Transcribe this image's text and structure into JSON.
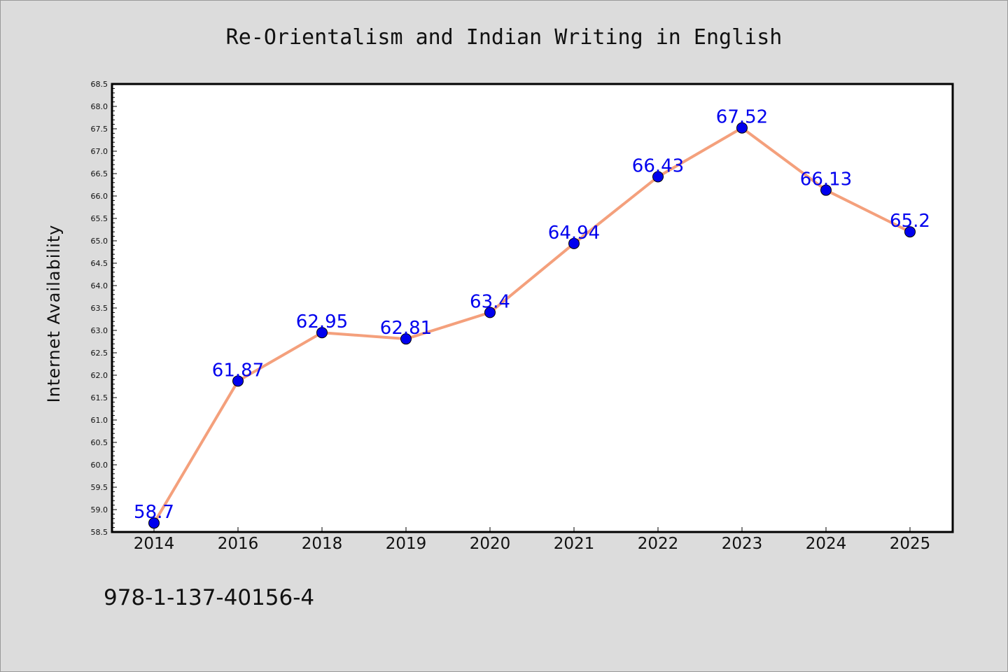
{
  "chart_data": {
    "type": "line",
    "title": "Re-Orientalism and Indian Writing in English",
    "xlabel": "",
    "ylabel": "Internet Availability",
    "categories": [
      "2014",
      "2016",
      "2018",
      "2019",
      "2020",
      "2021",
      "2022",
      "2023",
      "2024",
      "2025"
    ],
    "series": [
      {
        "values": [
          58.7,
          61.87,
          62.95,
          62.81,
          63.4,
          64.94,
          66.43,
          67.52,
          66.13,
          65.2
        ],
        "data_labels": [
          "58.7",
          "61.87",
          "62.95",
          "62.81",
          "63.4",
          "64.94",
          "66.43",
          "67.52",
          "66.13",
          "65.2"
        ]
      }
    ],
    "ylim": [
      58.5,
      68.5
    ],
    "yticks": [
      "58.5",
      "59.0",
      "59.5",
      "60.0",
      "60.5",
      "61.0",
      "61.5",
      "62.0",
      "62.5",
      "63.0",
      "63.5",
      "64.0",
      "64.5",
      "65.0",
      "65.5",
      "66.0",
      "66.5",
      "67.0",
      "67.5",
      "68.0",
      "68.5"
    ],
    "grid": false,
    "legend": "none",
    "colors": {
      "line": "#f4a07c",
      "marker": "#0000ee",
      "data_label": "#0000ee",
      "plot_background": "#ffffff",
      "figure_background": "#dcdcdc"
    }
  },
  "footnote": "978-1-137-40156-4"
}
